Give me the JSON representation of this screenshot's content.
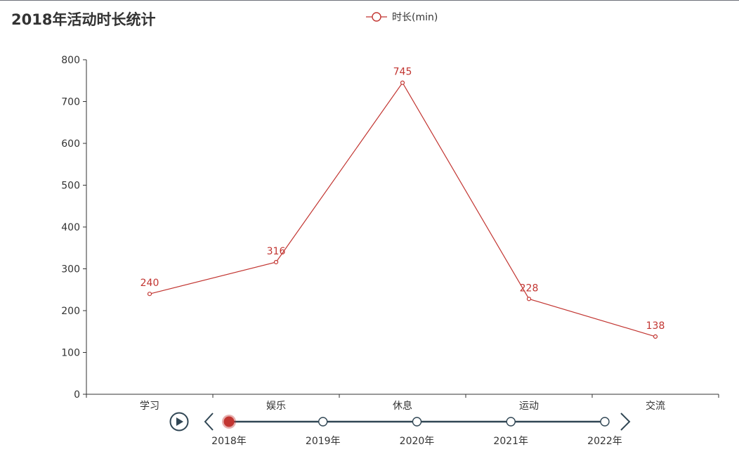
{
  "title": "2018年活动时长统计",
  "colors": {
    "series": "#c23531",
    "axis": "#333333",
    "timeline": "#304654"
  },
  "chart_data": {
    "type": "line",
    "title": "2018年活动时长统计",
    "categories": [
      "学习",
      "娱乐",
      "休息",
      "运动",
      "交流"
    ],
    "series": [
      {
        "name": "时长(min)",
        "values": [
          240,
          316,
          745,
          228,
          138
        ]
      }
    ],
    "ylim": [
      0,
      800
    ],
    "yticks": [
      0,
      100,
      200,
      300,
      400,
      500,
      600,
      700,
      800
    ],
    "xlabel": "",
    "ylabel": "",
    "legend_position": "top-center",
    "grid": false,
    "data_labels": true
  },
  "timeline": {
    "years": [
      "2018年",
      "2019年",
      "2020年",
      "2021年",
      "2022年"
    ],
    "current_index": 0
  }
}
